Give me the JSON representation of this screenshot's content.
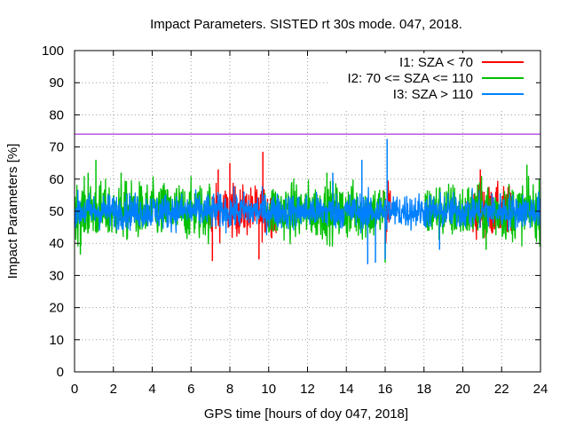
{
  "chart_data": {
    "type": "line",
    "title": "Impact Parameters. SISTED rt 30s mode. 047, 2018.",
    "xlabel": "GPS time [hours of doy 047, 2018]",
    "ylabel": "Impact Parameters [%]",
    "xlim": [
      0,
      24
    ],
    "ylim": [
      0,
      100
    ],
    "xticks": [
      0,
      2,
      4,
      6,
      8,
      10,
      12,
      14,
      16,
      18,
      20,
      22,
      24
    ],
    "yticks": [
      0,
      10,
      20,
      30,
      40,
      50,
      60,
      70,
      80,
      90,
      100
    ],
    "grid": true,
    "legend_position": "top-right",
    "reference_line": {
      "y": 74,
      "color": "#9400d3"
    },
    "series": [
      {
        "name": "I1: SZA < 70",
        "color": "#ff0000",
        "active_ranges": [
          [
            6.8,
            10.4
          ],
          [
            15.9,
            16.3
          ],
          [
            20.2,
            22.6
          ]
        ],
        "mean": 50,
        "typical_range": [
          43,
          57
        ],
        "extremes": [
          [
            7.1,
            34.5
          ],
          [
            7.4,
            63
          ],
          [
            8.0,
            65
          ],
          [
            9.7,
            68.5
          ],
          [
            9.5,
            35
          ],
          [
            20.9,
            63
          ]
        ]
      },
      {
        "name": "I2: 70 <= SZA <= 110",
        "color": "#00c000",
        "active_ranges": [
          [
            0,
            7.0
          ],
          [
            9.8,
            16.0
          ],
          [
            18.0,
            24
          ]
        ],
        "mean": 50,
        "typical_range": [
          42,
          58
        ],
        "extremes": [
          [
            0.3,
            36.5
          ],
          [
            1.1,
            66
          ],
          [
            0.7,
            62
          ],
          [
            2.4,
            62
          ],
          [
            13.0,
            62
          ],
          [
            16.0,
            34
          ],
          [
            21.2,
            38
          ],
          [
            23.3,
            64.5
          ]
        ]
      },
      {
        "name": "I3: SZA > 110",
        "color": "#0080ff",
        "active_ranges": [
          [
            0,
            24
          ]
        ],
        "mean": 50,
        "typical_range": [
          45,
          55
        ],
        "extremes": [
          [
            15.5,
            34
          ],
          [
            15.1,
            33.5
          ],
          [
            16.1,
            72.5
          ],
          [
            16.0,
            35
          ],
          [
            13.3,
            62
          ],
          [
            18.8,
            38
          ],
          [
            14.8,
            66
          ]
        ]
      }
    ]
  }
}
